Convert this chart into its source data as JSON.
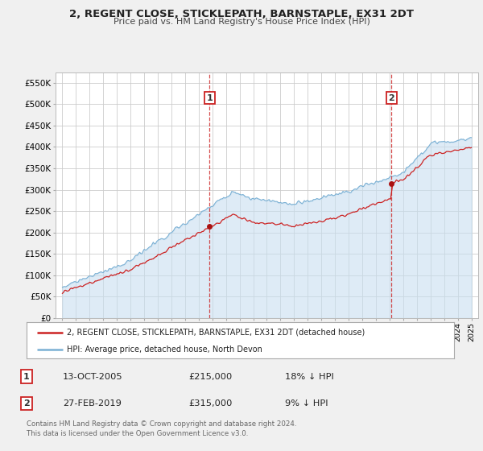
{
  "title": "2, REGENT CLOSE, STICKLEPATH, BARNSTAPLE, EX31 2DT",
  "subtitle": "Price paid vs. HM Land Registry's House Price Index (HPI)",
  "yticks": [
    0,
    50000,
    100000,
    150000,
    200000,
    250000,
    300000,
    350000,
    400000,
    450000,
    500000,
    550000
  ],
  "ytick_labels": [
    "£0",
    "£50K",
    "£100K",
    "£150K",
    "£200K",
    "£250K",
    "£300K",
    "£350K",
    "£400K",
    "£450K",
    "£500K",
    "£550K"
  ],
  "background_color": "#f0f0f0",
  "plot_bg_color": "#ffffff",
  "grid_color": "#cccccc",
  "hpi_color": "#7ab0d4",
  "hpi_fill_color": "#c8dff0",
  "price_color": "#cc2222",
  "sale1_x": 2005.79,
  "sale1_y": 215000,
  "sale1_label": "1",
  "sale2_x": 2019.15,
  "sale2_y": 315000,
  "sale2_label": "2",
  "legend_price_label": "2, REGENT CLOSE, STICKLEPATH, BARNSTAPLE, EX31 2DT (detached house)",
  "legend_hpi_label": "HPI: Average price, detached house, North Devon",
  "table_rows": [
    {
      "num": "1",
      "date": "13-OCT-2005",
      "price": "£215,000",
      "pct": "18% ↓ HPI"
    },
    {
      "num": "2",
      "date": "27-FEB-2019",
      "price": "£315,000",
      "pct": "9% ↓ HPI"
    }
  ],
  "footnote": "Contains HM Land Registry data © Crown copyright and database right 2024.\nThis data is licensed under the Open Government Licence v3.0.",
  "xmin": 1994.5,
  "xmax": 2025.5,
  "ymin": 0,
  "ymax": 575000
}
